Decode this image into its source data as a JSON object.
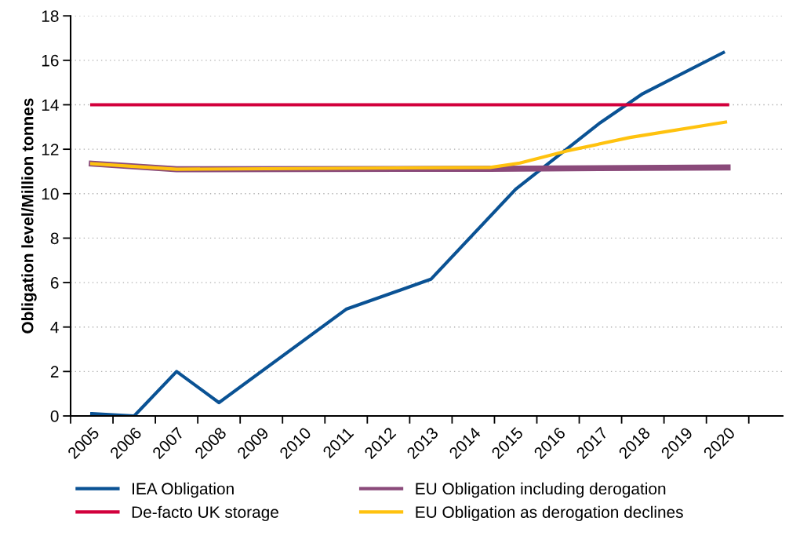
{
  "chart_data": {
    "type": "line",
    "ylabel": "Obligation level/Million tonnes",
    "xlim": [
      2004.5,
      2021.3
    ],
    "ylim": [
      0,
      18
    ],
    "yticks": [
      0,
      2,
      4,
      6,
      8,
      10,
      12,
      14,
      16,
      18
    ],
    "xticks": [
      {
        "value": 2004.5,
        "label": null
      },
      {
        "value": 2005,
        "label": "2005"
      },
      {
        "value": 2005.5,
        "label": null
      },
      {
        "value": 2006,
        "label": "2006"
      },
      {
        "value": 2006.5,
        "label": null
      },
      {
        "value": 2007,
        "label": "2007"
      },
      {
        "value": 2007.5,
        "label": null
      },
      {
        "value": 2008,
        "label": "2008"
      },
      {
        "value": 2008.5,
        "label": null
      },
      {
        "value": 2009,
        "label": "2009"
      },
      {
        "value": 2009.5,
        "label": null
      },
      {
        "value": 2010,
        "label": "2010"
      },
      {
        "value": 2010.5,
        "label": null
      },
      {
        "value": 2011,
        "label": "2011"
      },
      {
        "value": 2011.5,
        "label": null
      },
      {
        "value": 2012,
        "label": "2012"
      },
      {
        "value": 2012.5,
        "label": null
      },
      {
        "value": 2013,
        "label": "2013"
      },
      {
        "value": 2013.5,
        "label": null
      },
      {
        "value": 2014,
        "label": "2014"
      },
      {
        "value": 2014.5,
        "label": null
      },
      {
        "value": 2015,
        "label": "2015"
      },
      {
        "value": 2015.5,
        "label": null
      },
      {
        "value": 2016,
        "label": "2016"
      },
      {
        "value": 2016.5,
        "label": null
      },
      {
        "value": 2017,
        "label": "2017"
      },
      {
        "value": 2017.5,
        "label": null
      },
      {
        "value": 2018,
        "label": "2018"
      },
      {
        "value": 2018.5,
        "label": null
      },
      {
        "value": 2019,
        "label": "2019"
      },
      {
        "value": 2019.5,
        "label": null
      },
      {
        "value": 2020,
        "label": "2020"
      },
      {
        "value": 2020.5,
        "label": null
      }
    ],
    "grid": "y",
    "legend": "bottom",
    "marker": "none",
    "line_style": "solid",
    "series": [
      {
        "name": "IEA Obligation",
        "color": "#0a5294",
        "x": [
          2005,
          2006,
          2007,
          2008,
          2011,
          2013,
          2015,
          2017,
          2018,
          2019.9
        ],
        "values": [
          0.1,
          0,
          2.0,
          0.6,
          4.8,
          6.15,
          10.2,
          13.2,
          14.5,
          16.35
        ]
      },
      {
        "name": "De-facto UK storage",
        "color": "#d2003c",
        "x": [
          2005,
          2020
        ],
        "values": [
          14.0,
          14.0
        ]
      },
      {
        "name": "EU Obligation including derogation",
        "color": "#8a4a7a",
        "x": [
          2005,
          2007,
          2014.4,
          2020
        ],
        "values": [
          11.35,
          11.1,
          11.12,
          11.18
        ]
      },
      {
        "name": "EU Obligation as derogation declines",
        "color": "#ffc20e",
        "x": [
          2005,
          2007,
          2014.4,
          2015.1,
          2016.2,
          2017.7,
          2019.95
        ],
        "values": [
          11.35,
          11.1,
          11.18,
          11.38,
          11.92,
          12.53,
          13.22
        ]
      }
    ]
  }
}
